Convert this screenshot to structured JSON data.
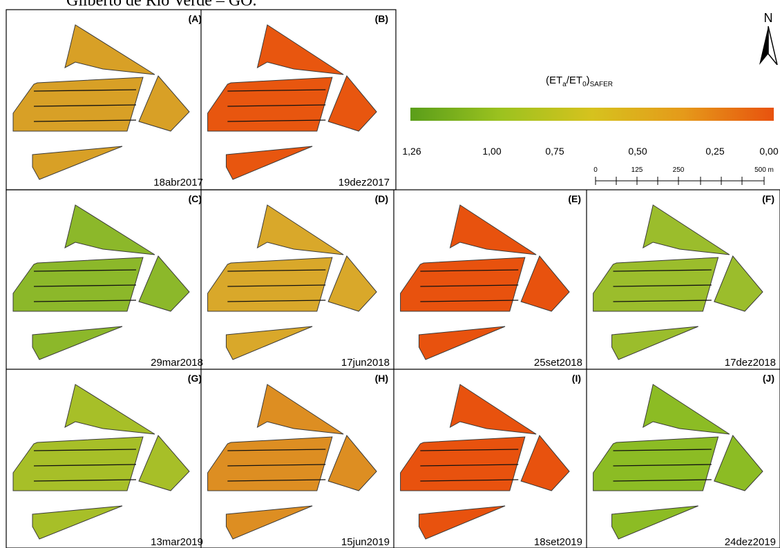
{
  "caption": "Gilberto de Rio Verde – GO.",
  "legend": {
    "title_main": "(ET",
    "title_sub_a": "a",
    "title_mid": "/ET",
    "title_sub_0": "0",
    "title_close": ")",
    "title_sub_safer": "SAFER",
    "colors": [
      "#5a9e1a",
      "#9cc21f",
      "#d6c21e",
      "#e59a1a",
      "#e8520e"
    ],
    "ticks": [
      "1,26",
      "1,00",
      "0,75",
      "0,50",
      "0,25",
      "0,00"
    ]
  },
  "scalebar": {
    "labels": [
      "0",
      "125",
      "250",
      "500 m"
    ]
  },
  "north_label": "N",
  "panels": [
    {
      "letter": "(A)",
      "date": "18abr2017",
      "color": "#d8a026"
    },
    {
      "letter": "(B)",
      "date": "19dez2017",
      "color": "#e8560f"
    },
    {
      "letter": "(C)",
      "date": "29mar2018",
      "color": "#8cb82a"
    },
    {
      "letter": "(D)",
      "date": "17jun2018",
      "color": "#d9a82a"
    },
    {
      "letter": "(E)",
      "date": "25set2018",
      "color": "#e8520e"
    },
    {
      "letter": "(F)",
      "date": "17dez2018",
      "color": "#9bbd2c"
    },
    {
      "letter": "(G)",
      "date": "13mar2019",
      "color": "#a7bf28"
    },
    {
      "letter": "(H)",
      "date": "15jun2019",
      "color": "#dd8e22"
    },
    {
      "letter": "(I)",
      "date": "18set2019",
      "color": "#e8520e"
    },
    {
      "letter": "(J)",
      "date": "24dez2019",
      "color": "#8cbc24"
    }
  ]
}
